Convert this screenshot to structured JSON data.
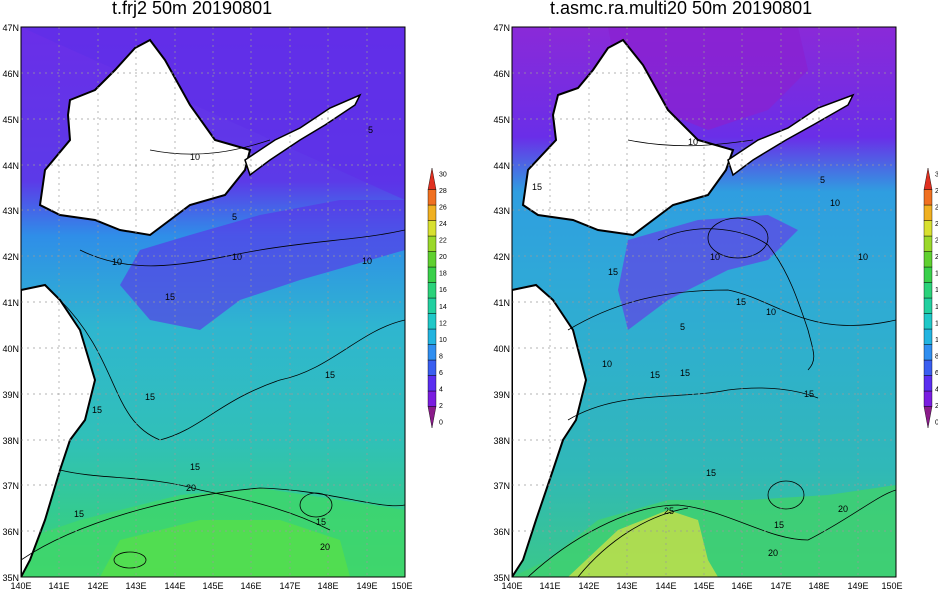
{
  "panels": [
    {
      "title": "t.frj2  50m  20190801",
      "contour_labels": [
        "10",
        "5",
        "5",
        "10",
        "10",
        "10",
        "15",
        "15",
        "15",
        "15",
        "15",
        "20",
        "15",
        "20"
      ]
    },
    {
      "title": "t.asmc.ra.multi20  50m  20190801",
      "contour_labels": [
        "15",
        "10",
        "5",
        "10",
        "15",
        "10",
        "10",
        "15",
        "10",
        "5",
        "15",
        "10",
        "15",
        "15",
        "15",
        "20",
        "25",
        "20",
        "15"
      ]
    }
  ],
  "axes": {
    "lat_labels": [
      "47N",
      "46N",
      "45N",
      "44N",
      "43N",
      "42N",
      "41N",
      "40N",
      "39N",
      "38N",
      "37N",
      "36N",
      "35N"
    ],
    "lon_labels": [
      "140E",
      "141E",
      "142E",
      "143E",
      "144E",
      "145E",
      "146E",
      "147E",
      "148E",
      "149E",
      "150E"
    ]
  },
  "colorbar": {
    "ticks": [
      "30",
      "28",
      "26",
      "24",
      "22",
      "20",
      "18",
      "16",
      "14",
      "12",
      "10",
      "8",
      "6",
      "4",
      "2",
      "0"
    ],
    "colors": [
      "#8a1b8a",
      "#7a1de0",
      "#5a2ef0",
      "#3a5ef0",
      "#2f8ef0",
      "#22b4e0",
      "#1fc8c8",
      "#22d0a0",
      "#2bd27a",
      "#39d04a",
      "#60d030",
      "#9ad82a",
      "#d8e030",
      "#f0b020",
      "#f07020",
      "#e03020"
    ]
  },
  "colors": {
    "ocean_cold": "#6a2ee8",
    "ocean_cool": "#2e8ee8",
    "ocean_mid": "#30c0b8",
    "ocean_warm": "#3fd070",
    "land": "#ffffff",
    "grid": "#9a9a9a"
  }
}
